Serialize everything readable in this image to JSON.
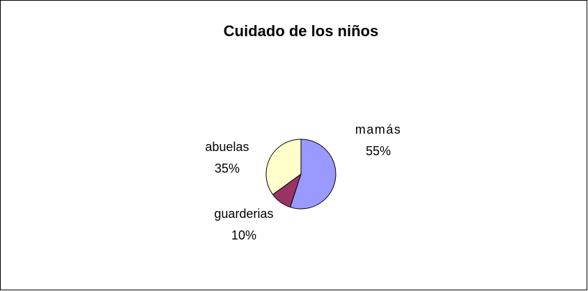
{
  "chart_data": {
    "type": "pie",
    "title": "Cuidado de los niños",
    "categories": [
      "mamás",
      "guarderias",
      "abuelas"
    ],
    "values": [
      55,
      10,
      35
    ],
    "value_labels": [
      "55%",
      "10%",
      "35%"
    ],
    "colors": [
      "#9999ff",
      "#993366",
      "#ffffcc"
    ]
  }
}
